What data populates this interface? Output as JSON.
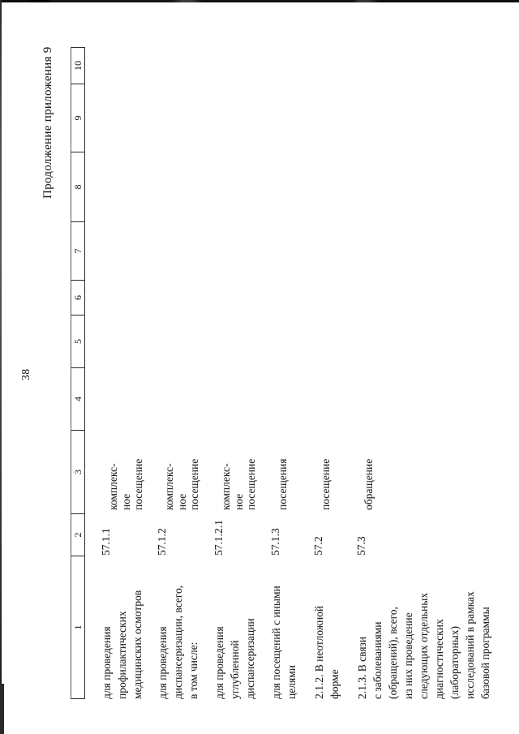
{
  "page": {
    "number": "38",
    "continuation_note": "Продолжение приложения 9"
  },
  "table": {
    "header_columns": [
      "1",
      "2",
      "3",
      "4",
      "5",
      "6",
      "7",
      "8",
      "9",
      "10"
    ],
    "rows": [
      {
        "name_lines": [
          "для проведения",
          "профилактических",
          "медицинских осмотров"
        ],
        "code": "57.1.1",
        "unit_lines": [
          "комплекс-",
          "ное",
          "посещение"
        ]
      },
      {
        "name_lines": [
          "для проведения",
          "диспансеризации, всего,",
          "в том числе:"
        ],
        "code": "57.1.2",
        "unit_lines": [
          "комплекс-",
          "ное",
          "посещение"
        ]
      },
      {
        "name_lines": [
          "для проведения",
          "углубленной",
          "диспансеризации"
        ],
        "code": "57.1.2.1",
        "unit_lines": [
          "комплекс-",
          "ное",
          "посещение"
        ]
      },
      {
        "name_lines": [
          "для посещений с иными",
          "целями"
        ],
        "code": "57.1.3",
        "unit_lines": [
          "посещения"
        ]
      },
      {
        "name_lines": [
          "2.1.2. В неотложной",
          "форме"
        ],
        "code": "57.2",
        "unit_lines": [
          "посещение"
        ]
      },
      {
        "name_lines": [
          "2.1.3. В связи",
          "с заболеваниями",
          "(обращений), всего,",
          "из них проведение",
          "следующих отдельных",
          "диагностических",
          "(лабораторных)",
          "исследований в рамках",
          "базовой программы"
        ],
        "code": "57.3",
        "unit_lines": [
          "обращение"
        ]
      }
    ]
  },
  "colors": {
    "ink": "#1e1e1e",
    "line": "#2b2b2b",
    "paper": "#ffffff"
  }
}
